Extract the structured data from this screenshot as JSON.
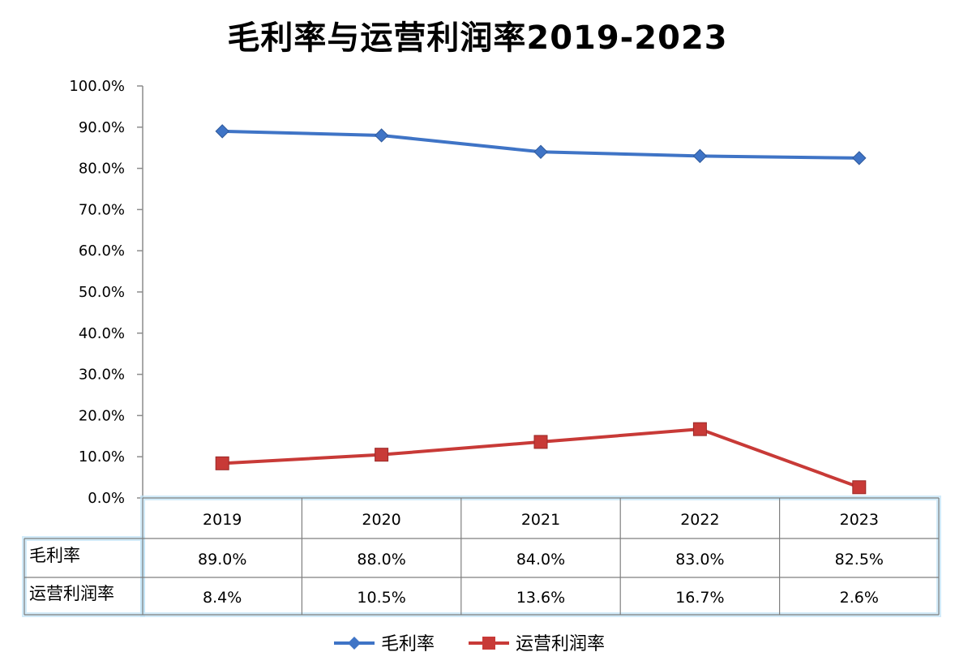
{
  "chart_data": {
    "type": "line",
    "title": "毛利率与运营利润率2019-2023",
    "categories": [
      "2019",
      "2020",
      "2021",
      "2022",
      "2023"
    ],
    "ylim": [
      0,
      100
    ],
    "y_ticks": [
      "100.0%",
      "90.0%",
      "80.0%",
      "70.0%",
      "60.0%",
      "50.0%",
      "40.0%",
      "30.0%",
      "20.0%",
      "10.0%",
      "0.0%"
    ],
    "series": [
      {
        "name": "毛利率",
        "values": [
          89.0,
          88.0,
          84.0,
          83.0,
          82.5
        ],
        "labels": [
          "89.0%",
          "88.0%",
          "84.0%",
          "83.0%",
          "82.5%"
        ],
        "color": "#3f74c6",
        "marker": "diamond"
      },
      {
        "name": "运营利润率",
        "values": [
          8.4,
          10.5,
          13.6,
          16.7,
          2.6
        ],
        "labels": [
          "8.4%",
          "10.5%",
          "13.6%",
          "16.7%",
          "2.6%"
        ],
        "color": "#c83a37",
        "marker": "square"
      }
    ],
    "grid": false,
    "legend": "bottom",
    "data_table": true
  }
}
